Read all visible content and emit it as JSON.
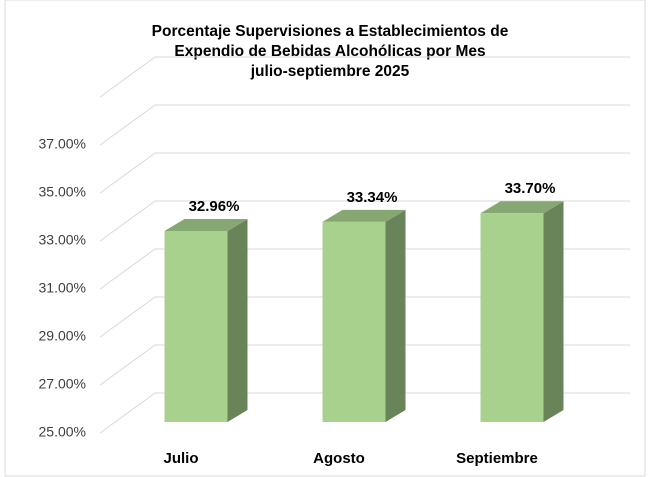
{
  "chart_data": {
    "type": "bar3d",
    "title": [
      "Porcentaje Supervisiones a Establecimientos de",
      "Expendio de Bebidas Alcohólicas por Mes",
      "julio-septiembre 2025"
    ],
    "categories": [
      "Julio",
      "Agosto",
      "Septiembre"
    ],
    "values": [
      32.96,
      33.34,
      33.7
    ],
    "value_labels": [
      "32.96%",
      "33.34%",
      "33.70%"
    ],
    "color": "#a9d18e",
    "ylim": [
      25,
      39
    ],
    "yticks": [
      {
        "value": 25,
        "label": "25.00%"
      },
      {
        "value": 27,
        "label": "27.00%"
      },
      {
        "value": 29,
        "label": "29.00%"
      },
      {
        "value": 31,
        "label": "31.00%"
      },
      {
        "value": 33,
        "label": "33.00%"
      },
      {
        "value": 35,
        "label": "35.00%"
      },
      {
        "value": 37,
        "label": "37.00%"
      }
    ],
    "grid": true
  }
}
